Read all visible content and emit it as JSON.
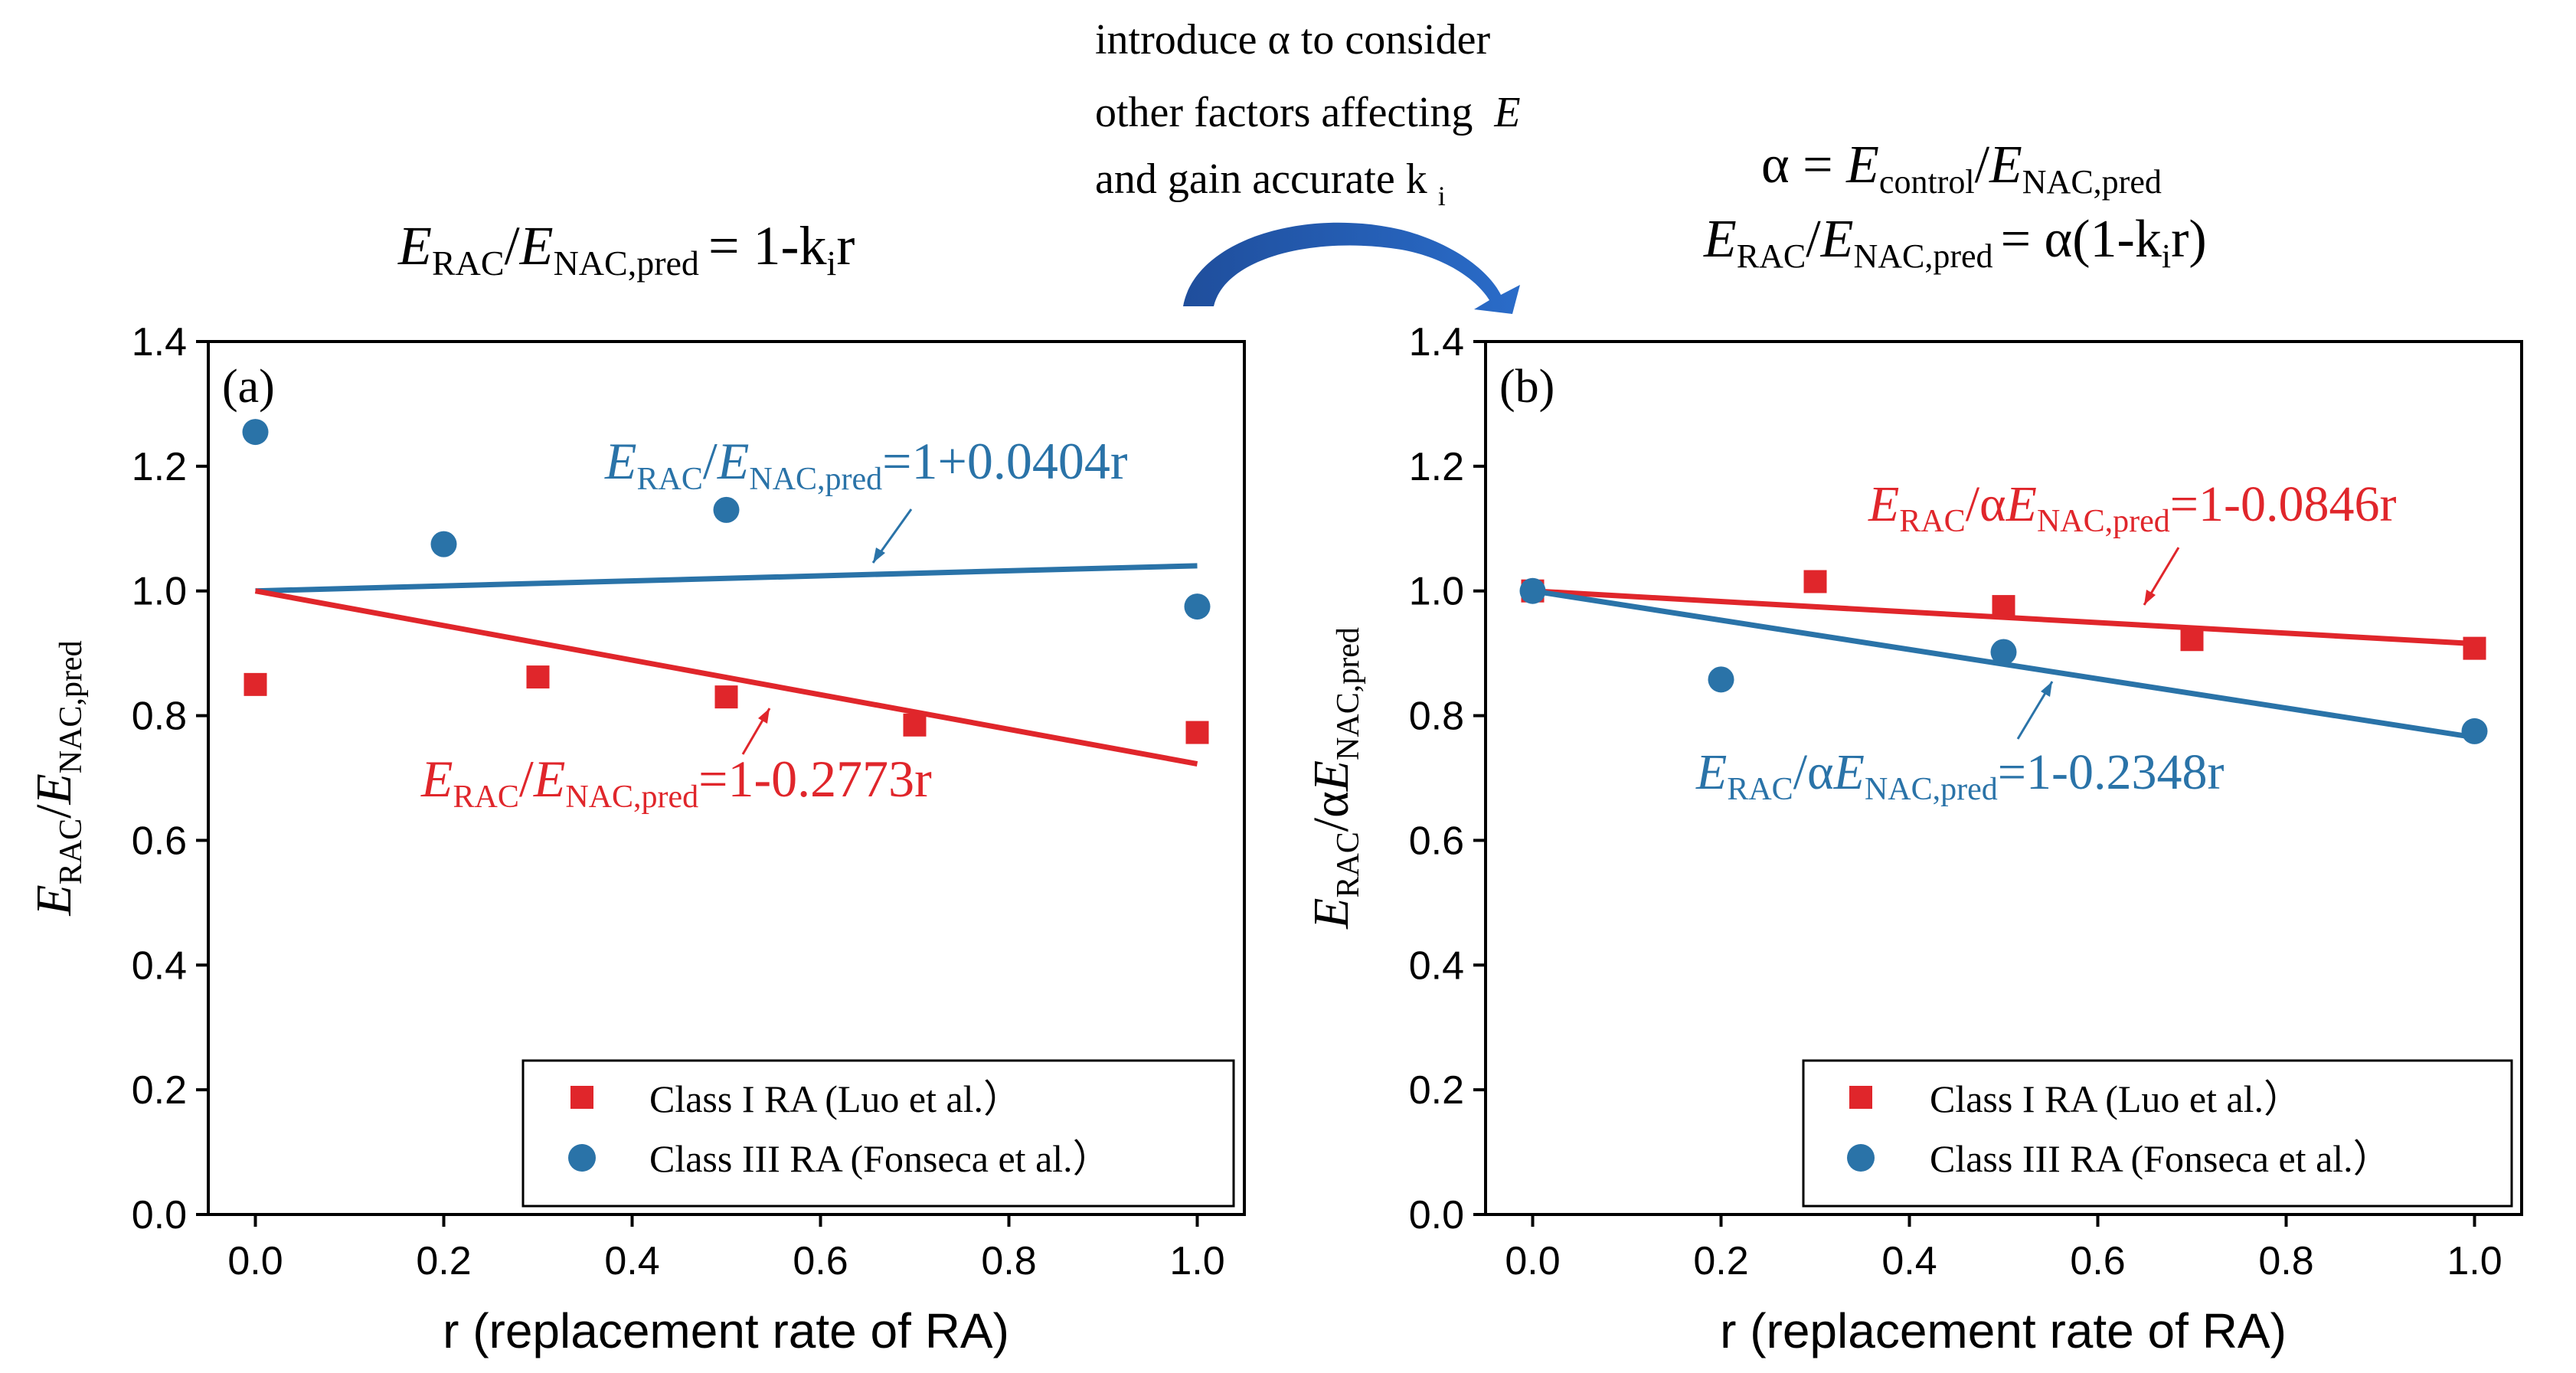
{
  "annotation": {
    "line1": "introduce α to consider",
    "line2": "other factors affecting",
    "line2_var": "E",
    "line3": "and gain accurate k",
    "line3_sub": "i"
  },
  "colors": {
    "red": "#e0262b",
    "blue": "#2a73a8"
  },
  "chart_data": [
    {
      "type": "scatter",
      "panel_label": "(a)",
      "header": {
        "e": "E",
        "rac": "RAC",
        "slash": "/",
        "e2": "E",
        "nacpred": "NAC,pred",
        "rhs": "= 1-k",
        "rhs_sub": "i",
        "rhs_end": "r"
      },
      "xlabel": "r (replacement rate of RA)",
      "ylabel": {
        "e": "E",
        "rac": "RAC",
        "slash": "/",
        "e2": "E",
        "nacpred": "NAC,pred"
      },
      "xlim": [
        -0.05,
        1.05
      ],
      "ylim": [
        0.0,
        1.4
      ],
      "xticks": [
        "0.0",
        "0.2",
        "0.4",
        "0.6",
        "0.8",
        "1.0"
      ],
      "yticks": [
        "0.0",
        "0.2",
        "0.4",
        "0.6",
        "0.8",
        "1.0",
        "1.2",
        "1.4"
      ],
      "series": [
        {
          "name": "Class I RA (Luo et al.）",
          "marker": "square",
          "color": "#e0262b",
          "x": [
            0.0,
            0.3,
            0.5,
            0.7,
            1.0
          ],
          "y": [
            0.85,
            0.862,
            0.83,
            0.785,
            0.773
          ]
        },
        {
          "name": "Class III RA (Fonseca et al.）",
          "marker": "circle",
          "color": "#2a73a8",
          "x": [
            0.0,
            0.2,
            0.5,
            1.0
          ],
          "y": [
            1.255,
            1.075,
            1.13,
            0.975
          ]
        }
      ],
      "fits": [
        {
          "color": "#2a73a8",
          "intercept": 1.0,
          "slope": 0.0404,
          "label": {
            "e": "E",
            "rac": "RAC",
            "mid": "/",
            "e2": "E",
            "nacpred": "NAC,pred",
            "rhs": "=1+0.0404r"
          }
        },
        {
          "color": "#e0262b",
          "intercept": 1.0,
          "slope": -0.2773,
          "label": {
            "e": "E",
            "rac": "RAC",
            "mid": "/",
            "e2": "E",
            "nacpred": "NAC,pred",
            "rhs": "=1-0.2773r"
          }
        }
      ]
    },
    {
      "type": "scatter",
      "panel_label": "(b)",
      "header": {
        "l1_a": "α = ",
        "l1_e": "E",
        "l1_control": "control",
        "l1_slash": "/",
        "l1_e2": "E",
        "l1_nacpred": "NAC,pred",
        "l2_e": "E",
        "l2_rac": "RAC",
        "l2_slash": "/",
        "l2_e2": "E",
        "l2_nacpred": "NAC,pred",
        "l2_rhs": "= α(1-k",
        "l2_sub": "i",
        "l2_end": "r)"
      },
      "xlabel": "r (replacement rate of RA)",
      "ylabel": {
        "e": "E",
        "rac": "RAC",
        "slash": "/α",
        "e2": "E",
        "nacpred": "NAC,pred"
      },
      "xlim": [
        -0.05,
        1.05
      ],
      "ylim": [
        0.0,
        1.4
      ],
      "xticks": [
        "0.0",
        "0.2",
        "0.4",
        "0.6",
        "0.8",
        "1.0"
      ],
      "yticks": [
        "0.0",
        "0.2",
        "0.4",
        "0.6",
        "0.8",
        "1.0",
        "1.2",
        "1.4"
      ],
      "series": [
        {
          "name": "Class I RA (Luo et al.）",
          "marker": "square",
          "color": "#e0262b",
          "x": [
            0.0,
            0.3,
            0.5,
            0.7,
            1.0
          ],
          "y": [
            1.0,
            1.015,
            0.975,
            0.922,
            0.908
          ]
        },
        {
          "name": "Class III RA (Fonseca et al.）",
          "marker": "circle",
          "color": "#2a73a8",
          "x": [
            0.0,
            0.2,
            0.5,
            1.0
          ],
          "y": [
            1.0,
            0.858,
            0.902,
            0.775
          ]
        }
      ],
      "fits": [
        {
          "color": "#e0262b",
          "intercept": 1.0,
          "slope": -0.0846,
          "label": {
            "e": "E",
            "rac": "RAC",
            "mid": "/α",
            "e2": "E",
            "nacpred": "NAC,pred",
            "rhs": "=1-0.0846r"
          }
        },
        {
          "color": "#2a73a8",
          "intercept": 1.0,
          "slope": -0.2348,
          "label": {
            "e": "E",
            "rac": "RAC",
            "mid": "/α",
            "e2": "E",
            "nacpred": "NAC,pred",
            "rhs": "=1-0.2348r"
          }
        }
      ]
    }
  ]
}
